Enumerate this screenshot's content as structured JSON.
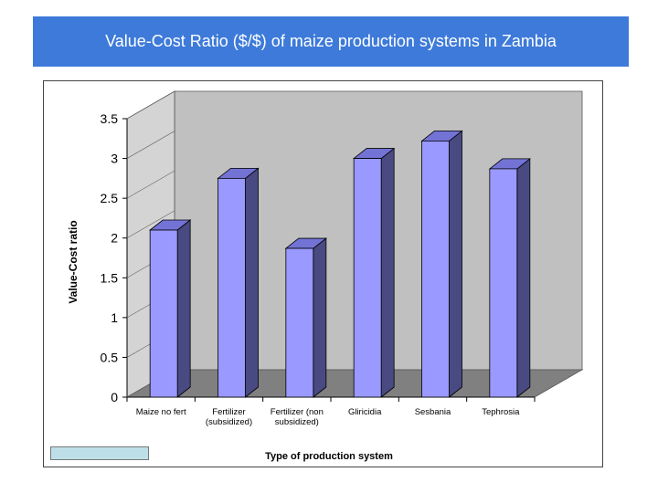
{
  "header": {
    "title": "Value-Cost Ratio ($/$) of maize production systems in Zambia"
  },
  "chart_data": {
    "type": "bar",
    "categories": [
      [
        "Maize no fert"
      ],
      [
        "Fertilizer",
        "(subsidized)"
      ],
      [
        "Fertilizer (non",
        "subsidized)"
      ],
      [
        "Gliricidia"
      ],
      [
        "Sesbania"
      ],
      [
        "Tephrosia"
      ]
    ],
    "values": [
      2.1,
      2.75,
      1.87,
      3.0,
      3.22,
      2.87
    ],
    "ylim": [
      0,
      3.5
    ],
    "yticks": [
      "0",
      "0.5",
      "1",
      "1.5",
      "2",
      "2.5",
      "3",
      "3.5"
    ],
    "title": "",
    "xlabel": "Type of production system",
    "ylabel": "Value-Cost ratio",
    "grid": false,
    "colors": {
      "bar_front": "#9999ff",
      "bar_side": "#4a4a82",
      "bar_top": "#7373d6",
      "wall": "#c0c0c0",
      "floor": "#808080"
    }
  }
}
